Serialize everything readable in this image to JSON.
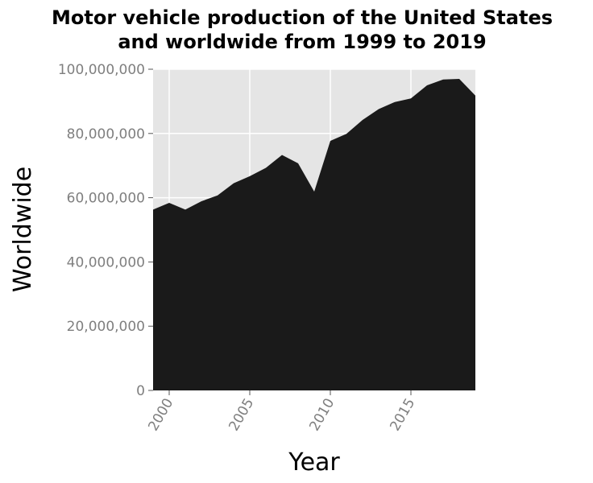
{
  "chart_data": {
    "type": "area",
    "title_lines": [
      "Motor vehicle production of the United States",
      "and worldwide from 1999 to 2019"
    ],
    "xlabel": "Year",
    "ylabel": "Worldwide",
    "xlim": [
      1999,
      2019
    ],
    "ylim": [
      0,
      100000000
    ],
    "x_ticks": [
      2000,
      2005,
      2010,
      2015
    ],
    "x_tick_labels": [
      "2000",
      "2005",
      "2010",
      "2015"
    ],
    "y_ticks": [
      0,
      20000000,
      40000000,
      60000000,
      80000000,
      100000000
    ],
    "y_tick_labels": [
      "0",
      "20,000,000",
      "40,000,000",
      "60,000,000",
      "80,000,000",
      "100,000,000"
    ],
    "grid": true,
    "background_color": "#e5e5e5",
    "series": [
      {
        "color": "#1a1a1a",
        "x": [
          1999,
          2000,
          2001,
          2002,
          2003,
          2004,
          2005,
          2006,
          2007,
          2008,
          2009,
          2010,
          2011,
          2012,
          2013,
          2014,
          2015,
          2016,
          2017,
          2018,
          2019
        ],
        "values": [
          56300000,
          58400000,
          56300000,
          58900000,
          60700000,
          64500000,
          66700000,
          69300000,
          73300000,
          70700000,
          61900000,
          77700000,
          79900000,
          84200000,
          87600000,
          89800000,
          90900000,
          95000000,
          96800000,
          97000000,
          91800000
        ]
      }
    ]
  }
}
